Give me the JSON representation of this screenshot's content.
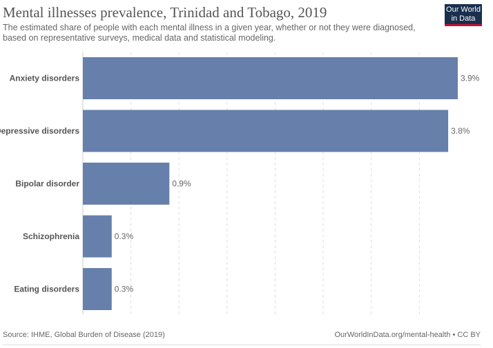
{
  "header": {
    "title": "Mental illnesses prevalence, Trinidad and Tobago, 2019",
    "subtitle": "The estimated share of people with each mental illness in a given year, whether or not they were diagnosed, based on representative surveys, medical data and statistical modeling."
  },
  "logo": {
    "line1": "Our World",
    "line2": "in Data",
    "bg_color": "#1a2f4e",
    "accent_color": "#c8102e"
  },
  "chart_data": {
    "type": "bar",
    "orientation": "horizontal",
    "categories": [
      "Anxiety disorders",
      "Depressive disorders",
      "Bipolar disorder",
      "Schizophrenia",
      "Eating disorders"
    ],
    "values": [
      3.9,
      3.8,
      0.9,
      0.3,
      0.3
    ],
    "value_labels": [
      "3.9%",
      "3.8%",
      "0.9%",
      "0.3%",
      "0.3%"
    ],
    "unit": "%",
    "xlim": [
      0,
      3.9
    ],
    "grid": "vertical dashed",
    "bar_color": "#6680ab"
  },
  "footer": {
    "source": "Source: IHME, Global Burden of Disease (2019)",
    "credit": "OurWorldInData.org/mental-health • CC BY"
  }
}
